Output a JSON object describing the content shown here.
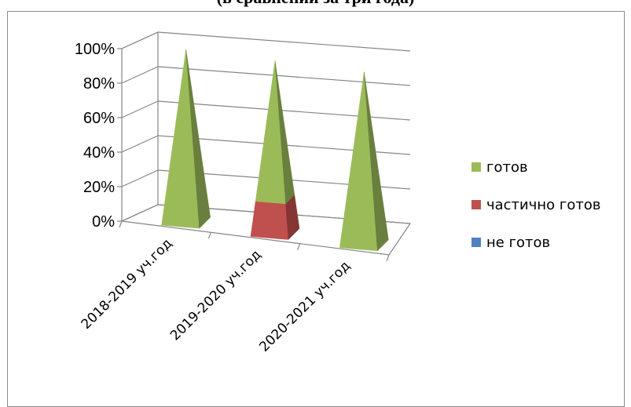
{
  "title": "(в сравнении за три года)",
  "chart_data": {
    "type": "bar",
    "style": "3d-pyramid-stacked",
    "title": "(в сравнении за три года)",
    "categories": [
      "2018-2019 уч.год",
      "2019-2020 уч.год",
      "2020-2021 уч.год"
    ],
    "series": [
      {
        "name": "готов",
        "values": [
          100,
          80,
          100
        ],
        "color": "#9bbb59"
      },
      {
        "name": "частично готов",
        "values": [
          0,
          20,
          0
        ],
        "color": "#c0504d"
      },
      {
        "name": "не готов",
        "values": [
          0,
          0,
          0
        ],
        "color": "#4f81bd"
      }
    ],
    "yticks": [
      "0%",
      "20%",
      "40%",
      "60%",
      "80%",
      "100%"
    ],
    "ylim": [
      0,
      100
    ],
    "grid": true,
    "legend": "right"
  }
}
